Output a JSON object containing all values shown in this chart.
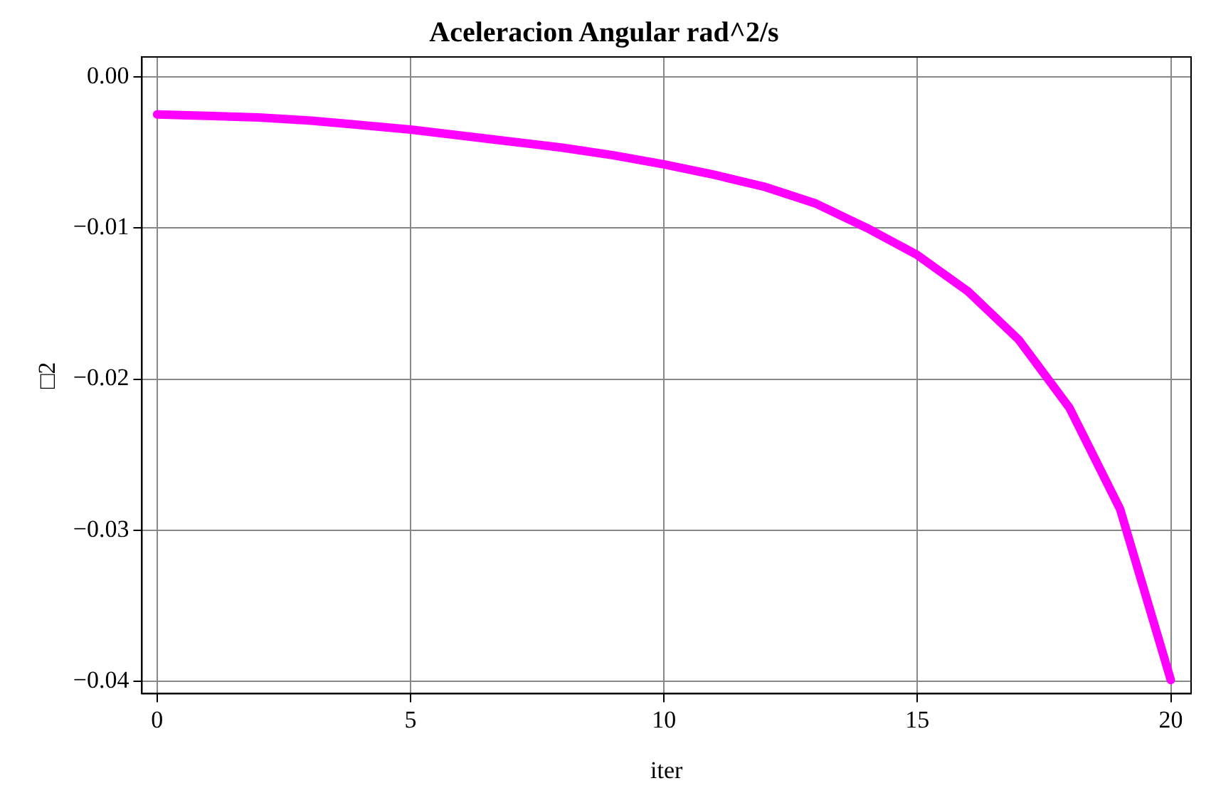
{
  "chart_data": {
    "type": "line",
    "title": "Aceleracion Angular rad^2/s",
    "xlabel": "iter",
    "ylabel": "□2",
    "x": [
      0,
      1,
      2,
      3,
      4,
      5,
      6,
      7,
      8,
      9,
      10,
      11,
      12,
      13,
      14,
      15,
      16,
      17,
      18,
      19,
      20
    ],
    "series": [
      {
        "color": "#ff00ff",
        "values": [
          -0.0025,
          -0.0026,
          -0.0027,
          -0.0029,
          -0.0032,
          -0.0035,
          -0.0039,
          -0.0043,
          -0.0047,
          -0.0052,
          -0.0058,
          -0.0065,
          -0.0073,
          -0.0084,
          -0.01,
          -0.0118,
          -0.0142,
          -0.0174,
          -0.0219,
          -0.0286,
          -0.0399
        ]
      }
    ],
    "xlim": [
      -0.3,
      20.4
    ],
    "xticks": [
      0,
      5,
      10,
      15,
      20
    ],
    "ylim": [
      -0.0408,
      0.0013
    ],
    "yticks": [
      {
        "value": 0,
        "label": "0.00"
      },
      {
        "value": -0.01,
        "label": "−0.01"
      },
      {
        "value": -0.02,
        "label": "−0.02"
      },
      {
        "value": -0.03,
        "label": "−0.03"
      },
      {
        "value": -0.04,
        "label": "−0.04"
      }
    ],
    "grid": true,
    "legend": false,
    "marker": "none",
    "line_style": "solid"
  }
}
